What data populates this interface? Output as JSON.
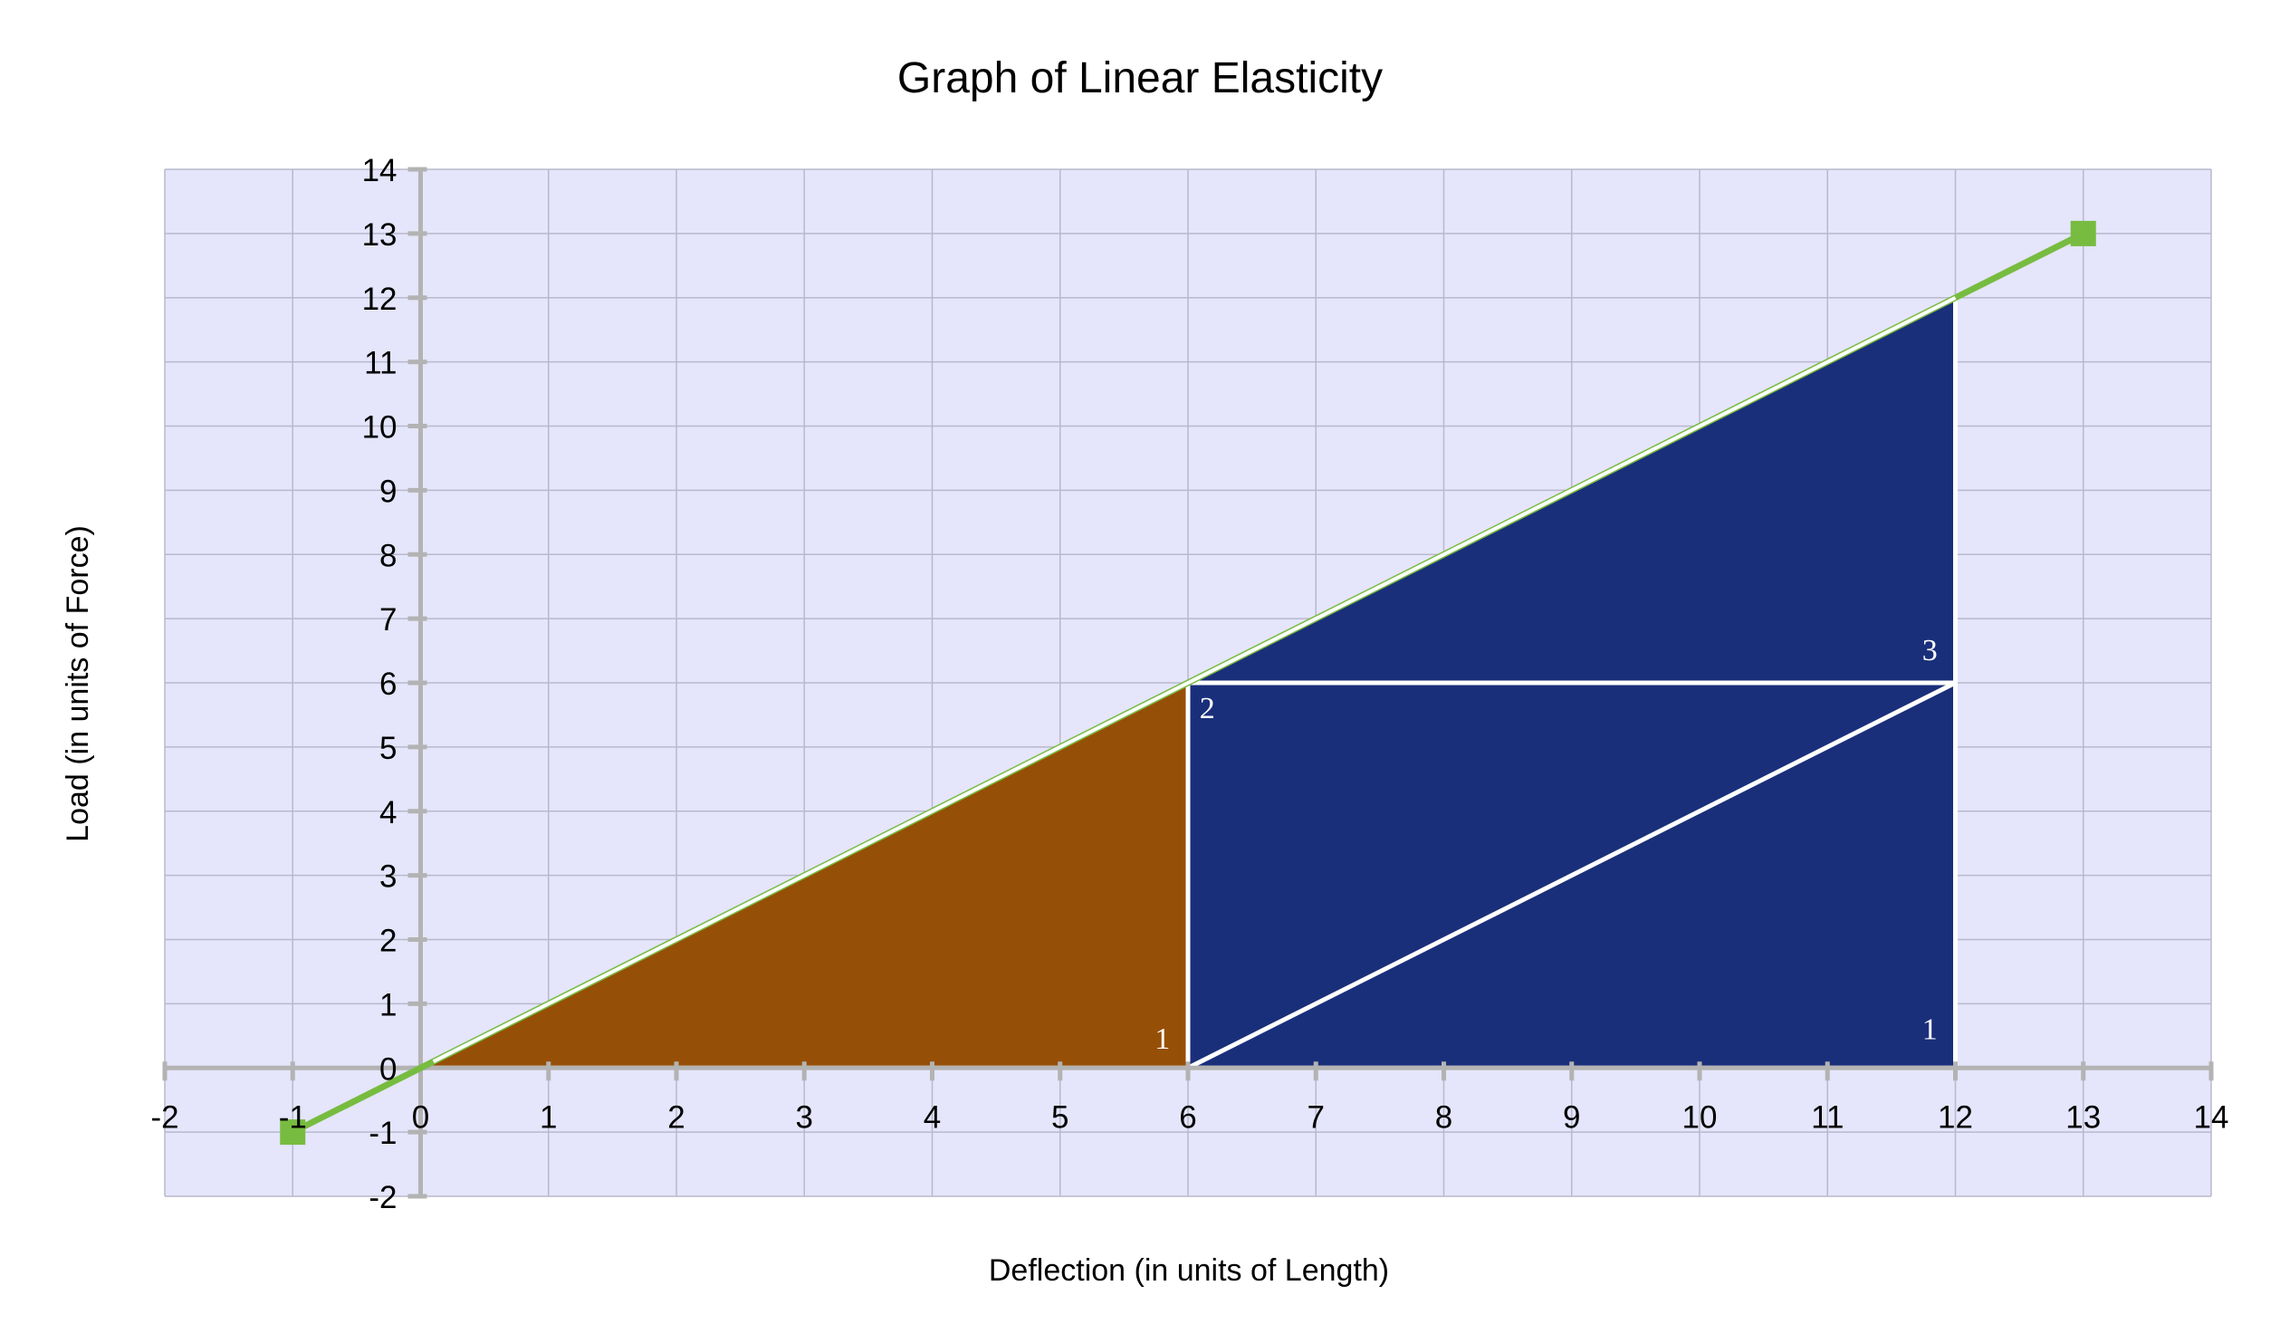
{
  "chart_data": {
    "type": "line",
    "title": "Graph of Linear Elasticity",
    "xlabel": "Deflection (in units of Length)",
    "ylabel": "Load (in units of Force)",
    "xlim": [
      -2,
      14
    ],
    "ylim": [
      -2,
      14
    ],
    "x_ticks": [
      "-2",
      "-1",
      "0",
      "1",
      "2",
      "3",
      "4",
      "5",
      "6",
      "7",
      "8",
      "9",
      "10",
      "11",
      "12",
      "13",
      "14"
    ],
    "y_ticks": [
      "-2",
      "-1",
      "0",
      "1",
      "2",
      "3",
      "4",
      "5",
      "6",
      "7",
      "8",
      "9",
      "10",
      "11",
      "12",
      "13",
      "14"
    ],
    "grid": true,
    "legend": "none",
    "colors": {
      "plot_background": "#e5e5fb",
      "grid": "#b9b9cc",
      "axis": "#b3b3b3",
      "line": "#77bc40",
      "region_1": "#964f06",
      "region_2": "#1a2f7a",
      "region_outline": "#ffffff"
    },
    "series": [
      {
        "points": [
          [
            -1,
            -1
          ],
          [
            13,
            13
          ]
        ],
        "marker": "square"
      }
    ],
    "regions": [
      {
        "points": [
          [
            0,
            0
          ],
          [
            6,
            0
          ],
          [
            6,
            6
          ]
        ],
        "color": "#964f06"
      },
      {
        "points": [
          [
            6,
            0
          ],
          [
            12,
            0
          ],
          [
            12,
            12
          ],
          [
            6,
            6
          ]
        ],
        "color": "#1a2f7a"
      }
    ],
    "lines": [
      [
        [
          6,
          6
        ],
        [
          12,
          6
        ]
      ],
      [
        [
          6,
          0
        ],
        [
          12,
          6
        ]
      ]
    ],
    "annotations": [
      {
        "text": "1",
        "x": 5.8,
        "y": 0.3
      },
      {
        "text": "2",
        "x": 6.15,
        "y": 5.45
      },
      {
        "text": "3",
        "x": 11.8,
        "y": 6.35
      },
      {
        "text": "1",
        "x": 11.8,
        "y": 0.45
      }
    ]
  }
}
